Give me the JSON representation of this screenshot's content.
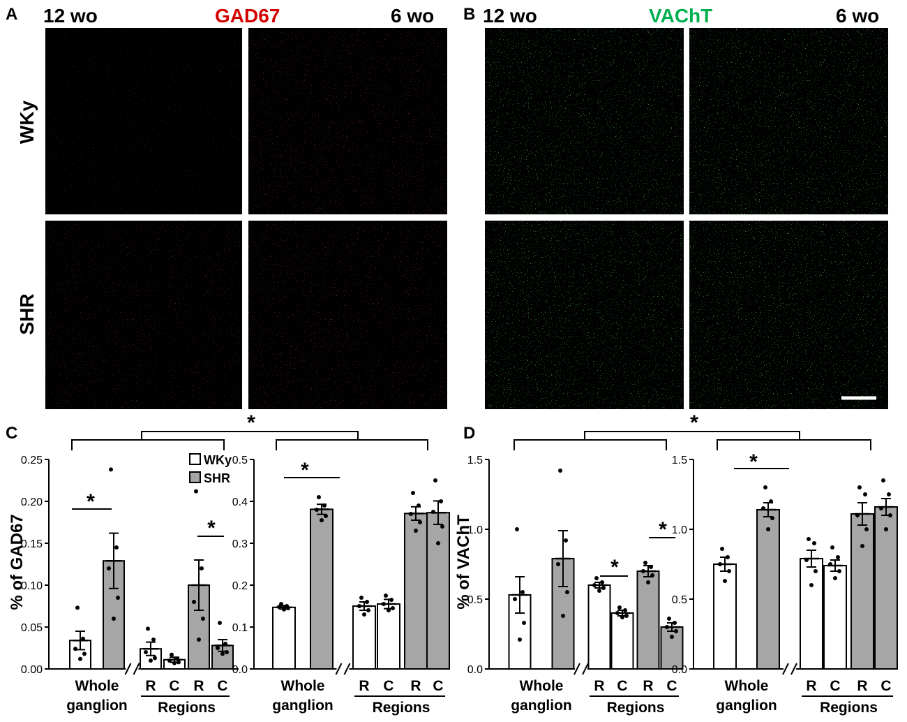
{
  "panel_letters": {
    "a": "A",
    "b": "B",
    "c": "C",
    "d": "D"
  },
  "micrographs": {
    "a": {
      "stain": "GAD67",
      "stain_color": "#d40000",
      "age_left": "12 wo",
      "age_right": "6 wo",
      "rows": [
        "WKy",
        "SHR"
      ],
      "signal_color": "#ff1a1a"
    },
    "b": {
      "stain": "VAChT",
      "stain_color": "#00b050",
      "age_left": "12 wo",
      "age_right": "6 wo",
      "signal_color": "#22e022"
    }
  },
  "legend": {
    "items": [
      "WKy",
      "SHR"
    ]
  },
  "colors": {
    "wky": "#ffffff",
    "shr": "#a6a6a6",
    "axis": "#000000"
  },
  "chart_data": [
    {
      "type": "bar",
      "panel": "C",
      "ylabel": "% of GAD67",
      "ylim": [
        0,
        0.25
      ],
      "yticks": [
        "0.00",
        "0.05",
        "0.10",
        "0.15",
        "0.20",
        "0.25"
      ],
      "x_groups": [
        "Whole ganglion",
        "Regions"
      ],
      "tick_labels": [
        "R",
        "C",
        "R",
        "C"
      ],
      "categories": [
        "Whole WKy",
        "Whole SHR",
        "R WKy",
        "C WKy",
        "R SHR",
        "C SHR"
      ],
      "series": [
        {
          "values": [
            0.034,
            0.129,
            0.024,
            0.011,
            0.1,
            0.028
          ],
          "sem": [
            0.011,
            0.033,
            0.008,
            0.003,
            0.03,
            0.007
          ]
        }
      ],
      "points": [
        [
          0.073,
          0.036,
          0.024,
          0.018,
          0.012
        ],
        [
          0.238,
          0.145,
          0.12,
          0.085,
          0.06
        ],
        [
          0.048,
          0.035,
          0.02,
          0.013,
          0.01
        ],
        [
          0.017,
          0.012,
          0.01,
          0.008,
          0.007
        ],
        [
          0.212,
          0.12,
          0.08,
          0.06,
          0.035
        ],
        [
          0.055,
          0.03,
          0.025,
          0.02,
          0.018
        ]
      ],
      "annotations": [
        "*",
        "*"
      ]
    },
    {
      "type": "bar",
      "panel": "C",
      "ylabel": "",
      "ylim": [
        0,
        0.5
      ],
      "yticks": [
        "0.0",
        "0.1",
        "0.2",
        "0.3",
        "0.4",
        "0.5"
      ],
      "x_groups": [
        "Whole ganglion",
        "Regions"
      ],
      "tick_labels": [
        "R",
        "C",
        "R",
        "C"
      ],
      "categories": [
        "Whole WKy",
        "Whole SHR",
        "R WKy",
        "C WKy",
        "R SHR",
        "C SHR"
      ],
      "series": [
        {
          "values": [
            0.147,
            0.381,
            0.15,
            0.155,
            0.371,
            0.373
          ],
          "sem": [
            0.004,
            0.012,
            0.01,
            0.011,
            0.016,
            0.028
          ]
        }
      ],
      "points": [
        [
          0.155,
          0.15,
          0.148,
          0.145,
          0.142
        ],
        [
          0.41,
          0.39,
          0.38,
          0.365,
          0.355
        ],
        [
          0.17,
          0.16,
          0.15,
          0.14,
          0.13
        ],
        [
          0.175,
          0.165,
          0.155,
          0.145,
          0.14
        ],
        [
          0.42,
          0.39,
          0.37,
          0.35,
          0.33
        ],
        [
          0.45,
          0.4,
          0.375,
          0.34,
          0.3
        ]
      ],
      "annotations": [
        "*"
      ]
    },
    {
      "type": "bar",
      "panel": "D",
      "ylabel": "% of VAChT",
      "ylim": [
        0,
        1.5
      ],
      "yticks": [
        "0.0",
        "0.5",
        "1.0",
        "1.5"
      ],
      "x_groups": [
        "Whole ganglion",
        "Regions"
      ],
      "tick_labels": [
        "R",
        "C",
        "R",
        "C"
      ],
      "categories": [
        "Whole WKy",
        "Whole SHR",
        "R WKy",
        "C WKy",
        "R SHR",
        "C SHR"
      ],
      "series": [
        {
          "values": [
            0.53,
            0.79,
            0.6,
            0.4,
            0.7,
            0.3
          ],
          "sem": [
            0.13,
            0.2,
            0.02,
            0.02,
            0.04,
            0.03
          ]
        }
      ],
      "points": [
        [
          1.0,
          0.55,
          0.5,
          0.33,
          0.21
        ],
        [
          1.42,
          0.92,
          0.75,
          0.55,
          0.38
        ],
        [
          0.65,
          0.62,
          0.6,
          0.58,
          0.56
        ],
        [
          0.44,
          0.42,
          0.4,
          0.38,
          0.37
        ],
        [
          0.76,
          0.73,
          0.7,
          0.67,
          0.62
        ],
        [
          0.36,
          0.33,
          0.3,
          0.27,
          0.23
        ]
      ],
      "annotations": [
        "*",
        "*",
        "*"
      ]
    },
    {
      "type": "bar",
      "panel": "D",
      "ylabel": "",
      "ylim": [
        0,
        1.5
      ],
      "yticks": [
        "0.0",
        "0.5",
        "1.0",
        "1.5"
      ],
      "x_groups": [
        "Whole ganglion",
        "Regions"
      ],
      "tick_labels": [
        "R",
        "C",
        "R",
        "C"
      ],
      "categories": [
        "Whole WKy",
        "Whole SHR",
        "R WKy",
        "C WKy",
        "R SHR",
        "C SHR"
      ],
      "series": [
        {
          "values": [
            0.75,
            1.14,
            0.79,
            0.74,
            1.11,
            1.16
          ],
          "sem": [
            0.05,
            0.05,
            0.06,
            0.04,
            0.08,
            0.06
          ]
        }
      ],
      "points": [
        [
          0.86,
          0.8,
          0.75,
          0.7,
          0.63
        ],
        [
          1.3,
          1.2,
          1.15,
          1.08,
          1.0
        ],
        [
          0.93,
          0.9,
          0.78,
          0.7,
          0.6
        ],
        [
          0.87,
          0.8,
          0.75,
          0.7,
          0.65
        ],
        [
          1.3,
          1.25,
          1.1,
          1.0,
          0.88
        ],
        [
          1.35,
          1.25,
          1.15,
          1.1,
          1.0
        ]
      ],
      "annotations": [
        "*"
      ]
    }
  ],
  "comparison_stars": [
    "*",
    "*"
  ]
}
